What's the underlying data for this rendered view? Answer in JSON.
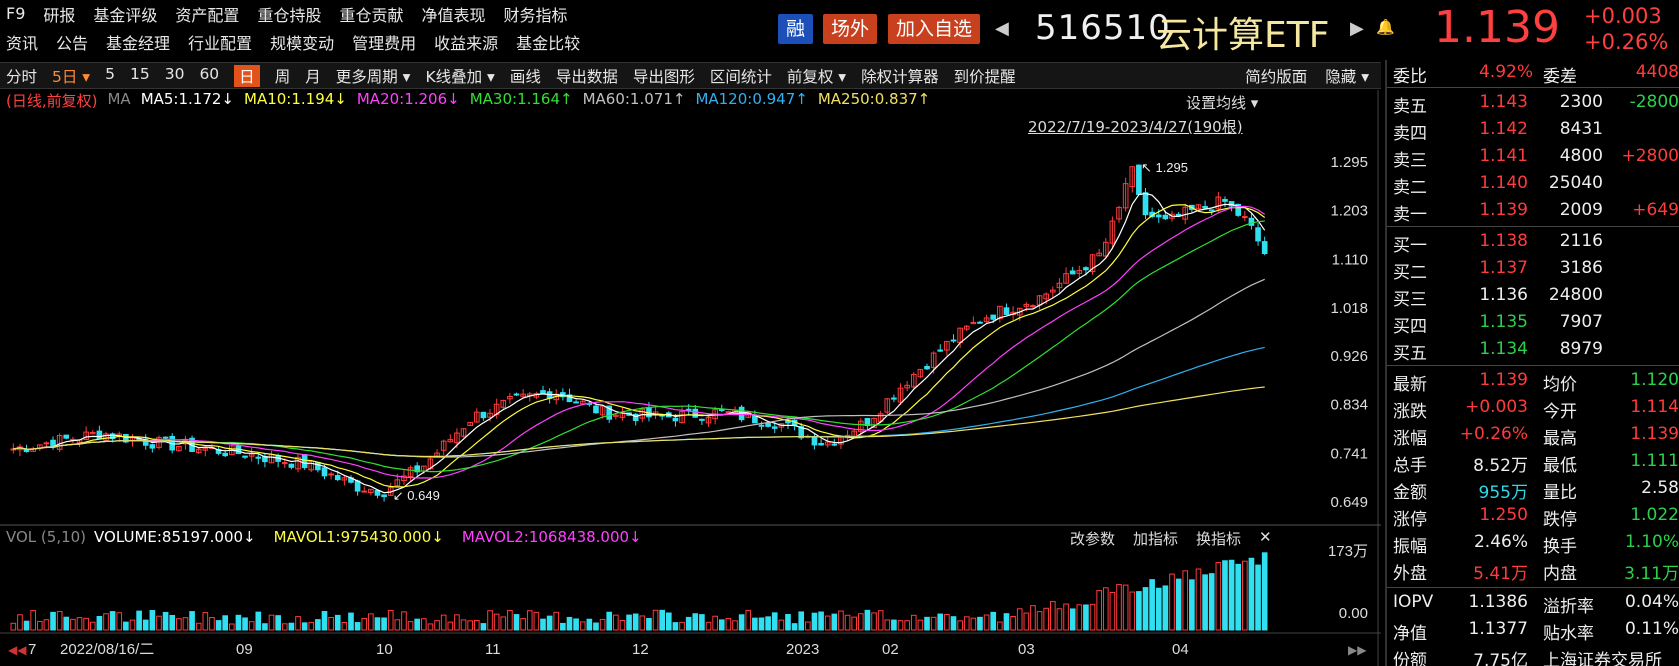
{
  "menu1": [
    "F9",
    "研报",
    "基金评级",
    "资产配置",
    "重仓持股",
    "重仓贡献",
    "净值表现",
    "财务指标"
  ],
  "menu2": [
    "资讯",
    "公告",
    "基金经理",
    "行业配置",
    "规模变动",
    "管理费用",
    "收益来源",
    "基金比较"
  ],
  "header": {
    "rong": "融",
    "changwai": "场外",
    "add_fav": "加入自选",
    "code": "516510",
    "name": "云计算ETF",
    "price": "1.139",
    "change": "+0.003",
    "change_pct": "+0.26%",
    "prev_icon": "triangle-left-icon",
    "next_icon": "triangle-right-icon",
    "bell_icon": "bell-icon"
  },
  "toolbar": {
    "items": [
      "分时",
      "5日",
      "5",
      "15",
      "30",
      "60",
      "日",
      "周",
      "月",
      "更多周期",
      "K线叠加",
      "画线",
      "导出数据",
      "导出图形",
      "区间统计",
      "前复权",
      "除权计算器",
      "到价提醒"
    ],
    "active": "日",
    "right": [
      "简约版面",
      "隐藏"
    ]
  },
  "ma_legend": {
    "mode": "(日线,前复权)",
    "ma": "MA",
    "ma5": "MA5:1.172↓",
    "ma10": "MA10:1.194↓",
    "ma20": "MA20:1.206↓",
    "ma30": "MA30:1.164↑",
    "ma60": "MA60:1.071↑",
    "ma120": "MA120:0.947↑",
    "ma250": "MA250:0.837↑",
    "set_ma": "设置均线",
    "range": "2022/7/19-2023/4/27(190根)"
  },
  "colors": {
    "up": "#ff3b3b",
    "down": "#30e0f0",
    "ma5": "#ffffff",
    "ma10": "#ffff40",
    "ma20": "#ff40ff",
    "ma30": "#30e030",
    "ma60": "#c0c0c0",
    "ma120": "#30b0f0",
    "ma250": "#f0e060"
  },
  "volume": {
    "label": "VOL (5,10)",
    "volume": "VOLUME:85197.000↓",
    "mavol1": "MAVOL1:975430.000↓",
    "mavol2": "MAVOL2:1068438.000↓",
    "buttons": [
      "改参数",
      "加指标",
      "换指标"
    ],
    "close_icon": "close-icon",
    "axis_top": "173万",
    "axis_bottom": "0.00"
  },
  "chart_data": {
    "type": "candlestick",
    "y_ticks": [
      "1.295",
      "1.203",
      "1.110",
      "1.018",
      "0.926",
      "0.834",
      "0.741",
      "0.649"
    ],
    "ylim": [
      0.649,
      1.295
    ],
    "max_label": "1.295",
    "min_label": "0.649",
    "x_ticks": [
      "7",
      "2022/08/16/二",
      "09",
      "10",
      "11",
      "12",
      "2023",
      "02",
      "03",
      "04"
    ],
    "periods": 190,
    "close_path": [
      [
        0,
        0.75
      ],
      [
        15,
        0.78
      ],
      [
        25,
        0.76
      ],
      [
        40,
        0.74
      ],
      [
        50,
        0.72
      ],
      [
        58,
        0.68
      ],
      [
        63,
        0.67
      ],
      [
        70,
        0.72
      ],
      [
        78,
        0.81
      ],
      [
        85,
        0.84
      ],
      [
        92,
        0.86
      ],
      [
        100,
        0.82
      ],
      [
        110,
        0.81
      ],
      [
        120,
        0.82
      ],
      [
        130,
        0.8
      ],
      [
        138,
        0.76
      ],
      [
        145,
        0.8
      ],
      [
        152,
        0.88
      ],
      [
        160,
        0.96
      ],
      [
        165,
        1.0
      ],
      [
        170,
        1.02
      ],
      [
        175,
        1.04
      ],
      [
        180,
        1.08
      ],
      [
        185,
        1.12
      ],
      [
        188,
        1.2
      ],
      [
        190,
        1.29
      ],
      [
        192,
        1.2
      ],
      [
        196,
        1.18
      ],
      [
        200,
        1.2
      ],
      [
        206,
        1.22
      ],
      [
        210,
        1.18
      ],
      [
        214,
        1.1
      ]
    ],
    "mavol1": "975430.000",
    "mavol2": "1068438.000"
  },
  "panel": {
    "weibi_label": "委比",
    "weibi": "4.92%",
    "weicha_label": "委差",
    "weicha": "4408",
    "sells": [
      {
        "label": "卖五",
        "price": "1.143",
        "vol": "2300",
        "delta": "-2800"
      },
      {
        "label": "卖四",
        "price": "1.142",
        "vol": "8431",
        "delta": ""
      },
      {
        "label": "卖三",
        "price": "1.141",
        "vol": "4800",
        "delta": "+2800"
      },
      {
        "label": "卖二",
        "price": "1.140",
        "vol": "25040",
        "delta": ""
      },
      {
        "label": "卖一",
        "price": "1.139",
        "vol": "2009",
        "delta": "+649"
      }
    ],
    "buys": [
      {
        "label": "买一",
        "price": "1.138",
        "vol": "2116"
      },
      {
        "label": "买二",
        "price": "1.137",
        "vol": "3186"
      },
      {
        "label": "买三",
        "price": "1.136",
        "vol": "24800"
      },
      {
        "label": "买四",
        "price": "1.135",
        "vol": "7907"
      },
      {
        "label": "买五",
        "price": "1.134",
        "vol": "8979"
      }
    ],
    "stats": [
      [
        "最新",
        "1.139",
        "均价",
        "1.120"
      ],
      [
        "涨跌",
        "+0.003",
        "今开",
        "1.114"
      ],
      [
        "涨幅",
        "+0.26%",
        "最高",
        "1.139"
      ],
      [
        "总手",
        "8.52万",
        "最低",
        "1.111"
      ],
      [
        "金额",
        "955万",
        "量比",
        "2.58"
      ],
      [
        "涨停",
        "1.250",
        "跌停",
        "1.022"
      ],
      [
        "振幅",
        "2.46%",
        "换手",
        "1.10%"
      ],
      [
        "外盘",
        "5.41万",
        "内盘",
        "3.11万"
      ]
    ],
    "iopv": [
      "IOPV",
      "1.1386",
      "溢折率",
      "0.04%"
    ],
    "nav": [
      "净值",
      "1.1377",
      "贴水率",
      "0.11%"
    ],
    "shares": [
      "份额",
      "7.75亿",
      "上海证券交易所"
    ]
  }
}
